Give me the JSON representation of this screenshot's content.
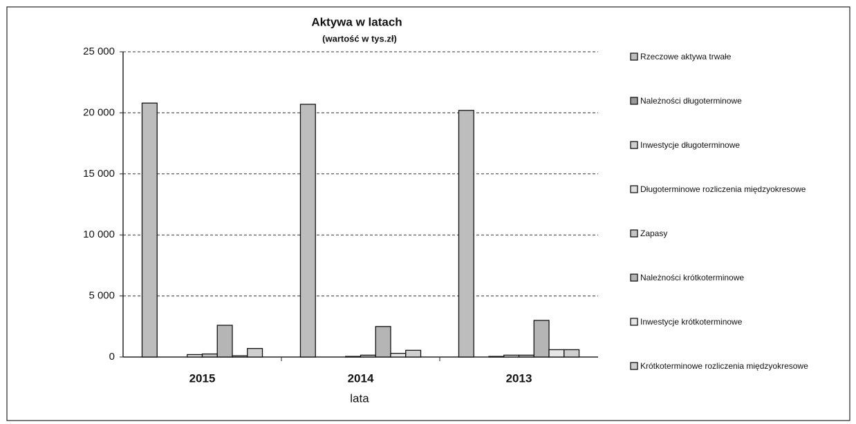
{
  "chart_data": {
    "type": "bar",
    "title": "Aktywa w latach",
    "subtitle": "(wartość w tys.zł)",
    "x_label": "lata",
    "categories": [
      "2015",
      "2014",
      "2013"
    ],
    "series": [
      {
        "name": "Rzeczowe aktywa trwałe",
        "color": "#bdbdbd",
        "values": [
          20800,
          20700,
          20200
        ]
      },
      {
        "name": "Należności długoterminowe",
        "color": "#9a9a9a",
        "values": [
          0,
          0,
          0
        ]
      },
      {
        "name": "Inwestycje długoterminowe",
        "color": "#d0d0d0",
        "values": [
          0,
          0,
          50
        ]
      },
      {
        "name": "Długoterminowe rozliczenia międzyokresowe",
        "color": "#e0e0e0",
        "values": [
          200,
          50,
          150
        ]
      },
      {
        "name": "Zapasy",
        "color": "#c4c4c4",
        "values": [
          250,
          150,
          150
        ]
      },
      {
        "name": "Należności krótkoterminowe",
        "color": "#b5b5b5",
        "values": [
          2600,
          2500,
          3000
        ]
      },
      {
        "name": "Inwestycje krótkoterminowe",
        "color": "#e6e6e6",
        "values": [
          100,
          300,
          600
        ]
      },
      {
        "name": "Krótkoterminowe rozliczenia międzyokresowe",
        "color": "#cfcfcf",
        "values": [
          700,
          550,
          600
        ]
      }
    ],
    "ylim": [
      0,
      25000
    ],
    "yticks": [
      0,
      {
        "value": 5000,
        "label": "5 000"
      },
      {
        "value": 10000,
        "label": "10 000"
      },
      {
        "value": 15000,
        "label": "15 000"
      },
      {
        "value": 20000,
        "label": "20 000"
      },
      {
        "value": 25000,
        "label": "25 000"
      }
    ],
    "grid": true,
    "legend": "right"
  }
}
